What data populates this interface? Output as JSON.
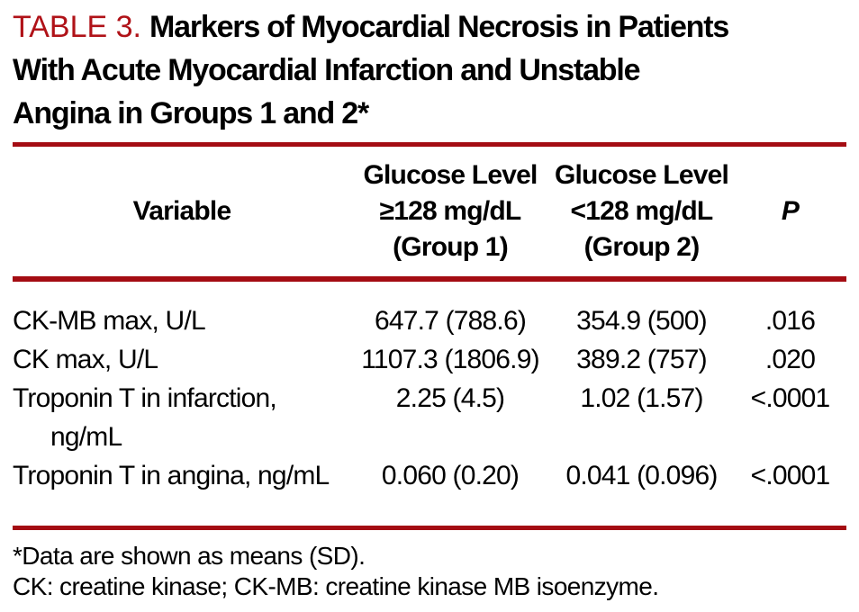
{
  "colors": {
    "accent_red_text": "#B01218",
    "accent_red_rule": "#A40C13",
    "text": "#000000",
    "background": "#FFFFFF"
  },
  "title": {
    "label": "TABLE 3.",
    "line1": "Markers of Myocardial Necrosis in Patients",
    "line2": "With Acute Myocardial Infarction and Unstable",
    "line3": "Angina in Groups 1 and 2*"
  },
  "table": {
    "header": {
      "variable": "Variable",
      "group1": {
        "line1": "Glucose Level",
        "line2": "≥128 mg/dL",
        "line3": "(Group 1)"
      },
      "group2": {
        "line1": "Glucose Level",
        "line2": "<128 mg/dL",
        "line3": "(Group 2)"
      },
      "p": "P"
    },
    "rows": [
      {
        "variable": "CK-MB max, U/L",
        "group1": "647.7 (788.6)",
        "group2": "354.9 (500)",
        "p": ".016"
      },
      {
        "variable": "CK max, U/L",
        "group1": "1107.3 (1806.9)",
        "group2": "389.2 (757)",
        "p": ".020"
      },
      {
        "variable": "Troponin T in infarction,",
        "variable_cont": "ng/mL",
        "group1": "2.25 (4.5)",
        "group2": "1.02 (1.57)",
        "p": "<.0001"
      },
      {
        "variable": "Troponin T in angina, ng/mL",
        "group1": "0.060 (0.20)",
        "group2": "0.041 (0.096)",
        "p": "<.0001"
      }
    ]
  },
  "footnotes": {
    "line1": "*Data are shown as means (SD).",
    "line2": "CK: creatine kinase; CK-MB: creatine kinase MB isoenzyme."
  }
}
